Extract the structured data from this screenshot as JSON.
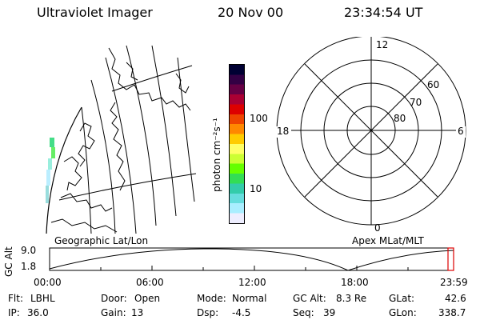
{
  "header": {
    "instrument": "Ultraviolet Imager",
    "date": "20 Nov 00",
    "time": "23:34:54 UT"
  },
  "colorbar": {
    "unit_label": "photon cm⁻²s⁻¹",
    "tick_labels": [
      "100",
      "10"
    ],
    "colors": [
      "#000033",
      "#330044",
      "#660044",
      "#aa0033",
      "#dd0000",
      "#ee4400",
      "#ff8800",
      "#ffcc00",
      "#ffff66",
      "#ccff33",
      "#66ff00",
      "#33dd55",
      "#33ccaa",
      "#66dddd",
      "#aaeeff",
      "#eeeeff"
    ]
  },
  "left_panel": {
    "caption": "Geographic Lat/Lon"
  },
  "polar_plot": {
    "caption": "Apex MLat/MLT",
    "mlt_labels": {
      "top": "12",
      "left": "18",
      "right": "6",
      "bottom": "0"
    },
    "mlat_labels": [
      "60",
      "70",
      "80"
    ]
  },
  "altitude_plot": {
    "ylabel": "GC Alt",
    "y_ticks": [
      "9.0",
      "1.8"
    ],
    "x_ticks": [
      "00:00",
      "06:00",
      "12:00",
      "18:00",
      "23:59"
    ]
  },
  "footer": {
    "filter_label": "Flt:",
    "filter_value": "LBHL",
    "ip_label": "IP:",
    "ip_value": "36.0",
    "door_label": "Door:",
    "door_value": "Open",
    "gain_label": "Gain:",
    "gain_value": "13",
    "mode_label": "Mode:",
    "mode_value": "Normal",
    "dsp_label": "Dsp:",
    "dsp_value": "-4.5",
    "gcalt_label": "GC Alt:",
    "gcalt_value": "8.3 Re",
    "seq_label": "Seq:",
    "seq_value": "39",
    "glat_label": "GLat:",
    "glat_value": "42.6",
    "glon_label": "GLon:",
    "glon_value": "338.7"
  }
}
